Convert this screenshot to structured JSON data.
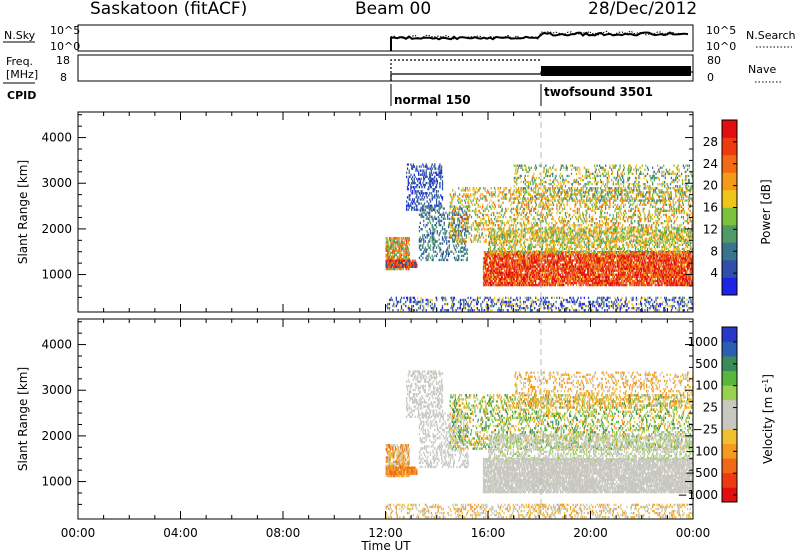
{
  "header": {
    "station": "Saskatoon (fitACF)",
    "beam": "Beam 00",
    "date": "28/Dec/2012"
  },
  "top_panels": {
    "nsky_label": "N.Sky",
    "nsky_ticks": [
      "10^5",
      "10^0"
    ],
    "nsearch_label": "N.Search",
    "nsearch_ticks": [
      "10^5",
      "10^0"
    ],
    "freq_label_1": "Freq.",
    "freq_label_2": "[MHz]",
    "freq_ticks": [
      "18",
      "8"
    ],
    "nave_label": "Nave",
    "nave_ticks": [
      "80",
      "0"
    ],
    "cpid_label": "CPID",
    "cpid_modes": [
      {
        "name": "normal 150",
        "start_hour": 12
      },
      {
        "name": "twofsound 3501",
        "start_hour": 18
      }
    ]
  },
  "chart_data": [
    {
      "type": "heatmap",
      "name": "power",
      "ylabel": "Slant Range [km]",
      "yticks": [
        "1000",
        "2000",
        "3000",
        "4000"
      ],
      "ylim": [
        180,
        4560
      ],
      "xlim": [
        0,
        24
      ],
      "colorbar_label": "Power [dB]",
      "colorbar_ticks": [
        "4",
        "8",
        "12",
        "16",
        "20",
        "24",
        "28"
      ],
      "colors": [
        "#1c24e6",
        "#2f4fa8",
        "#39748e",
        "#4f9a66",
        "#7cc23b",
        "#f0c419",
        "#f59a17",
        "#f26a14",
        "#ee3a10",
        "#e01010"
      ]
    },
    {
      "type": "heatmap",
      "name": "velocity",
      "ylabel": "Slant Range [km]",
      "yticks": [
        "1000",
        "2000",
        "3000",
        "4000"
      ],
      "ylim": [
        180,
        4560
      ],
      "xlim": [
        0,
        24
      ],
      "xlabel": "Time UT",
      "xticks": [
        "00:00",
        "04:00",
        "08:00",
        "12:00",
        "16:00",
        "20:00",
        "00:00"
      ],
      "colorbar_label": "Velocity [m s",
      "colorbar_label_sup": "-1",
      "colorbar_label_end": "]",
      "colorbar_ticks": [
        "1000",
        "500",
        "100",
        "25",
        "−25",
        "−100",
        "−500",
        "−1000"
      ],
      "colors": [
        "#2838c8",
        "#2d5fb0",
        "#3b8a5a",
        "#58b63a",
        "#98d050",
        "#c8c8c0",
        "#c8c8c0",
        "#f0c030",
        "#f59a20",
        "#f06818",
        "#ee3a10",
        "#e01010"
      ]
    }
  ]
}
